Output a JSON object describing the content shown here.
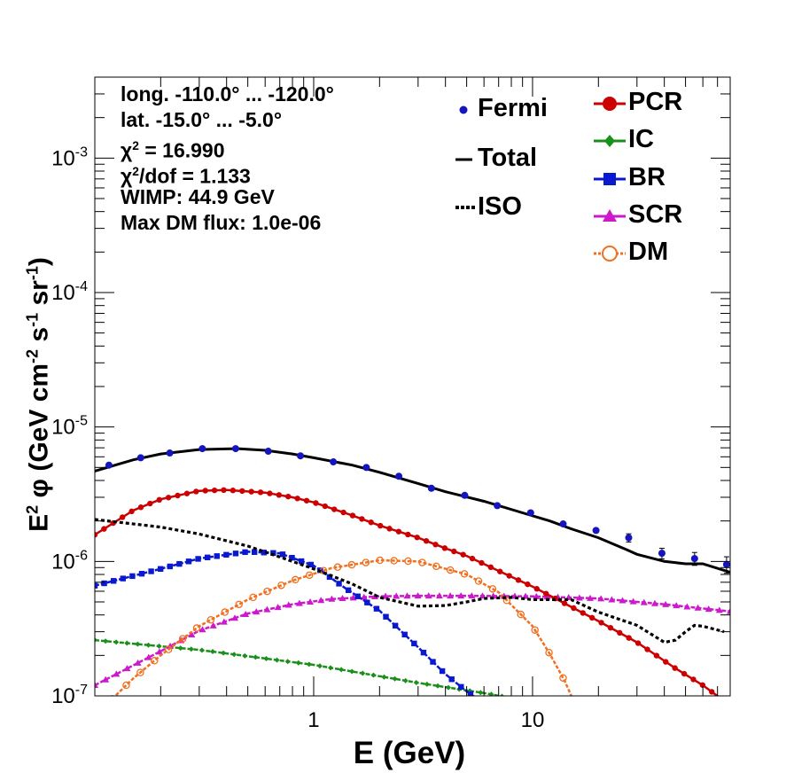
{
  "chart_data": {
    "type": "scatter",
    "xlabel": "E (GeV)",
    "ylabel_parts": {
      "e": "E",
      "e_exp": "2",
      "phi": "φ",
      "open": "(GeV cm",
      "cm_exp": "-2",
      "s": " s",
      "s_exp": "-1",
      "sr": " sr",
      "sr_exp": "-1",
      "close": ")"
    },
    "xscale": "log",
    "yscale": "log",
    "xlim": [
      0.1,
      80
    ],
    "ylim": [
      1e-07,
      0.004
    ],
    "x_ticks": [
      {
        "v": 1,
        "label": "1"
      },
      {
        "v": 10,
        "label": "10"
      }
    ],
    "y_ticks": [
      {
        "v": 1e-07,
        "base": "10",
        "exp": "-7"
      },
      {
        "v": 1e-06,
        "base": "10",
        "exp": "-6"
      },
      {
        "v": 1e-05,
        "base": "10",
        "exp": "-5"
      },
      {
        "v": 0.0001,
        "base": "10",
        "exp": "-4"
      },
      {
        "v": 0.001,
        "base": "10",
        "exp": "-3"
      }
    ],
    "info": {
      "lon": "long. -110.0° ... -120.0°",
      "lat": "lat. -15.0° ... -5.0°",
      "chi2_prefix": "χ",
      "chi2_sup": "2",
      "chi2_val": " = 16.990",
      "dof_prefix": "χ",
      "dof_sup": "2",
      "dof_val": "/dof = 1.133",
      "wimp": "WIMP: 44.9 GeV",
      "maxdm": "Max DM flux: 1.0e-06"
    },
    "legend": {
      "fermi": "Fermi",
      "total": "Total",
      "iso": "ISO",
      "pcr": "PCR",
      "ic": "IC",
      "br": "BR",
      "scr": "SCR",
      "dm": "DM"
    },
    "colors": {
      "fermi": "#1515c0",
      "total": "#000000",
      "iso": "#000000",
      "pcr": "#cc0000",
      "ic": "#1a8f1a",
      "br": "#0a19cf",
      "scr": "#cc19cc",
      "dm": "#f07020"
    },
    "fermi": {
      "x": [
        0.116,
        0.162,
        0.22,
        0.31,
        0.44,
        0.62,
        0.87,
        1.23,
        1.74,
        2.45,
        3.45,
        4.9,
        6.9,
        9.8,
        13.8,
        19.5,
        27.5,
        39,
        55,
        77
      ],
      "y": [
        5.2e-06,
        5.9e-06,
        6.4e-06,
        6.9e-06,
        6.9e-06,
        6.6e-06,
        6.1e-06,
        5.5e-06,
        5e-06,
        4.3e-06,
        3.5e-06,
        3.1e-06,
        2.6e-06,
        2.3e-06,
        1.9e-06,
        1.7e-06,
        1.5e-06,
        1.15e-06,
        1.05e-06,
        9.5e-07
      ],
      "err": [
        0.03,
        0.03,
        0.03,
        0.03,
        0.03,
        0.03,
        0.03,
        0.03,
        0.03,
        0.03,
        0.03,
        0.03,
        0.03,
        0.04,
        0.05,
        0.06,
        0.07,
        0.09,
        0.11,
        0.14
      ]
    },
    "total": {
      "x": [
        0.1,
        0.15,
        0.2,
        0.3,
        0.45,
        0.6,
        0.8,
        1.0,
        1.5,
        2,
        3,
        4,
        6,
        9,
        12,
        15,
        20,
        27,
        30,
        40,
        50,
        60,
        80
      ],
      "y": [
        4.7e-06,
        5.7e-06,
        6.3e-06,
        6.8e-06,
        6.9e-06,
        6.7e-06,
        6.3e-06,
        5.9e-06,
        5.2e-06,
        4.6e-06,
        3.8e-06,
        3.3e-06,
        2.8e-06,
        2.3e-06,
        2e-06,
        1.75e-06,
        1.5e-06,
        1.22e-06,
        1.13e-06,
        1e-06,
        9.6e-07,
        9.6e-07,
        8.3e-07
      ]
    },
    "iso": {
      "x": [
        0.1,
        0.2,
        0.3,
        0.5,
        0.7,
        1.0,
        1.5,
        2,
        3,
        4,
        5,
        6,
        8,
        10,
        15,
        20,
        30,
        40,
        45,
        50,
        55,
        60,
        75
      ],
      "y": [
        2.05e-06,
        1.8e-06,
        1.6e-06,
        1.3e-06,
        1.08e-06,
        8.8e-07,
        6.8e-07,
        5.4e-07,
        4.65e-07,
        4.7e-07,
        5e-07,
        5.3e-07,
        5.4e-07,
        5.2e-07,
        5.2e-07,
        4.2e-07,
        3.35e-07,
        2.5e-07,
        2.6e-07,
        3e-07,
        3.35e-07,
        3.3e-07,
        3e-07
      ]
    },
    "pcr": {
      "x": [
        0.1,
        0.15,
        0.2,
        0.3,
        0.4,
        0.6,
        0.8,
        1.0,
        1.5,
        2,
        3,
        4,
        5,
        7,
        10,
        15,
        20,
        30,
        45,
        60,
        80
      ],
      "y": [
        1.58e-06,
        2.4e-06,
        2.9e-06,
        3.35e-06,
        3.4e-06,
        3.25e-06,
        3e-06,
        2.75e-06,
        2.2e-06,
        1.85e-06,
        1.5e-06,
        1.25e-06,
        1.1e-06,
        8.5e-07,
        6.5e-07,
        4.6e-07,
        3.6e-07,
        2.5e-07,
        1.6e-07,
        1.2e-07,
        8.5e-08
      ]
    },
    "ic": {
      "x": [
        0.1,
        0.3,
        1,
        3,
        6,
        10,
        14,
        20
      ],
      "y": [
        2.6e-07,
        2.2e-07,
        1.7e-07,
        1.25e-07,
        1.05e-07,
        9e-08,
        8e-08,
        7e-08
      ]
    },
    "br": {
      "x": [
        0.1,
        0.2,
        0.3,
        0.5,
        0.7,
        1.0,
        1.4,
        2,
        3,
        4,
        5,
        6,
        7
      ],
      "y": [
        6.6e-07,
        8.8e-07,
        1.05e-06,
        1.18e-06,
        1.15e-06,
        9.3e-07,
        6.3e-07,
        4.3e-07,
        2.3e-07,
        1.45e-07,
        1.08e-07,
        8.8e-08,
        7e-08
      ]
    },
    "scr": {
      "x": [
        0.1,
        0.2,
        0.3,
        0.5,
        0.8,
        1.2,
        2,
        3,
        5,
        10,
        20,
        40,
        80
      ],
      "y": [
        1.2e-07,
        2.15e-07,
        3.05e-07,
        4.1e-07,
        4.8e-07,
        5.25e-07,
        5.5e-07,
        5.55e-07,
        5.55e-07,
        5.5e-07,
        5.3e-07,
        4.8e-07,
        4.25e-07
      ]
    },
    "dm": {
      "x": [
        0.12,
        0.15,
        0.2,
        0.3,
        0.5,
        0.8,
        1.2,
        2,
        3,
        5,
        7,
        10,
        12,
        14,
        16
      ],
      "y": [
        9.5e-08,
        1.35e-07,
        2e-07,
        3.3e-07,
        5.2e-07,
        7.2e-07,
        8.9e-07,
        1.02e-06,
        1e-06,
        8e-07,
        5.9e-07,
        3.3e-07,
        2.05e-07,
        1.3e-07,
        8e-08
      ]
    }
  }
}
